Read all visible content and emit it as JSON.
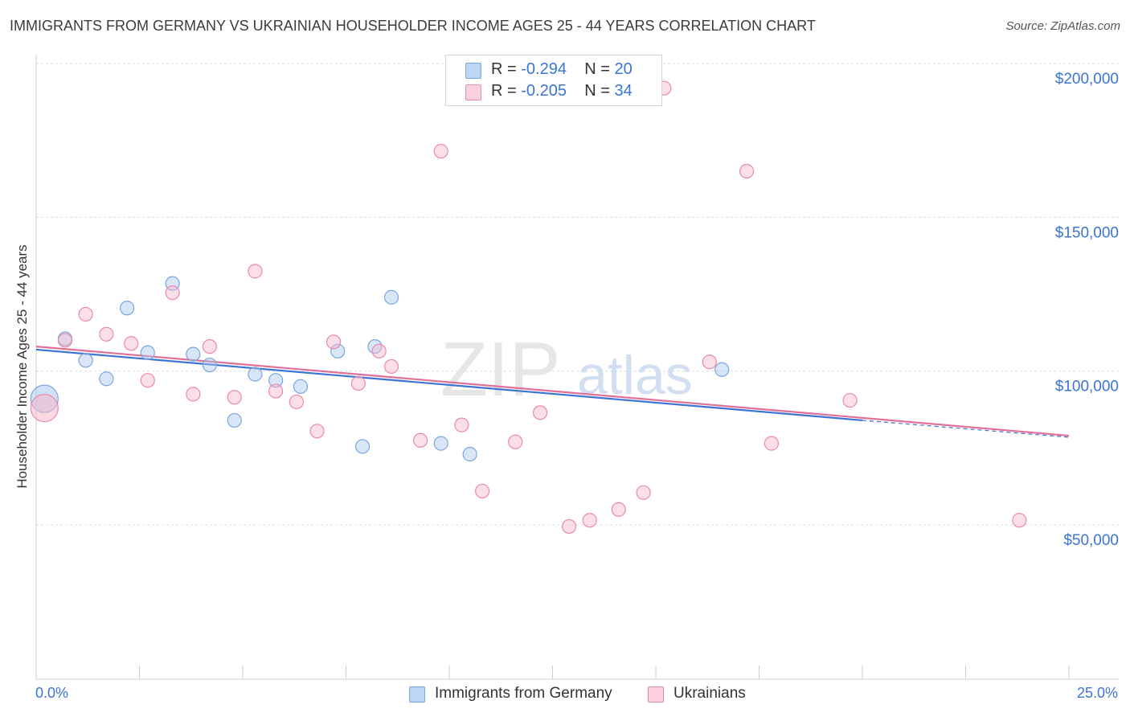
{
  "title": "IMMIGRANTS FROM GERMANY VS UKRAINIAN HOUSEHOLDER INCOME AGES 25 - 44 YEARS CORRELATION CHART",
  "source": "Source: ZipAtlas.com",
  "watermark": {
    "zip": "ZIP",
    "atlas": "atlas"
  },
  "stats": [
    {
      "r_label": "R = ",
      "r_value": "-0.294",
      "n_label": "N = ",
      "n_value": "20",
      "color": "#a9c8f0"
    },
    {
      "r_label": "R = ",
      "r_value": "-0.205",
      "n_label": "N = ",
      "n_value": "34",
      "color": "#f6b8cb"
    }
  ],
  "chart_data": {
    "type": "scatter",
    "title": "IMMIGRANTS FROM GERMANY VS UKRAINIAN HOUSEHOLDER INCOME AGES 25 - 44 YEARS CORRELATION CHART",
    "xlabel": "",
    "ylabel": "Householder Income Ages 25 - 44 years",
    "xlim": [
      0,
      25
    ],
    "ylim": [
      0,
      205000
    ],
    "x_tick_labels": [
      "0.0%",
      "25.0%"
    ],
    "y_ticks": [
      {
        "value": 50000,
        "label": "$50,000"
      },
      {
        "value": 100000,
        "label": "$100,000"
      },
      {
        "value": 150000,
        "label": "$150,000"
      },
      {
        "value": 200000,
        "label": "$200,000"
      }
    ],
    "grid": true,
    "legend_position": "bottom",
    "series": [
      {
        "name": "Immigrants from Germany",
        "color": "#a9c8f0",
        "stroke": "#7aa6dd",
        "trend_color": "#3b74d4",
        "trend": {
          "x0": 0,
          "y0": 107000,
          "x1": 20,
          "y1": 84000,
          "dash_to_x": 25,
          "dash_to_y": 78500
        },
        "points": [
          {
            "x": 0.2,
            "y": 91000,
            "big": true
          },
          {
            "x": 0.7,
            "y": 110500
          },
          {
            "x": 1.2,
            "y": 103500
          },
          {
            "x": 1.7,
            "y": 97500
          },
          {
            "x": 2.2,
            "y": 120500
          },
          {
            "x": 2.7,
            "y": 106000
          },
          {
            "x": 3.3,
            "y": 128500
          },
          {
            "x": 3.8,
            "y": 105500
          },
          {
            "x": 4.2,
            "y": 102000
          },
          {
            "x": 4.8,
            "y": 84000
          },
          {
            "x": 5.3,
            "y": 99000
          },
          {
            "x": 5.8,
            "y": 97000
          },
          {
            "x": 6.4,
            "y": 95000
          },
          {
            "x": 7.3,
            "y": 106500
          },
          {
            "x": 7.9,
            "y": 75500
          },
          {
            "x": 8.2,
            "y": 108000
          },
          {
            "x": 8.6,
            "y": 124000
          },
          {
            "x": 9.8,
            "y": 76500
          },
          {
            "x": 10.5,
            "y": 73000
          },
          {
            "x": 16.6,
            "y": 100500
          }
        ]
      },
      {
        "name": "Ukrainians",
        "color": "#f6b8cb",
        "stroke": "#e98aa8",
        "trend_color": "#e0709a",
        "trend": {
          "x0": 0,
          "y0": 108000,
          "x1": 25,
          "y1": 79000
        },
        "points": [
          {
            "x": 0.2,
            "y": 88000,
            "big": true
          },
          {
            "x": 0.7,
            "y": 110000
          },
          {
            "x": 1.2,
            "y": 118500
          },
          {
            "x": 1.7,
            "y": 112000
          },
          {
            "x": 2.3,
            "y": 109000
          },
          {
            "x": 2.7,
            "y": 97000
          },
          {
            "x": 3.3,
            "y": 125500
          },
          {
            "x": 3.8,
            "y": 92500
          },
          {
            "x": 4.2,
            "y": 108000
          },
          {
            "x": 4.8,
            "y": 91500
          },
          {
            "x": 5.3,
            "y": 132500
          },
          {
            "x": 5.8,
            "y": 93500
          },
          {
            "x": 6.3,
            "y": 90000
          },
          {
            "x": 6.8,
            "y": 80500
          },
          {
            "x": 7.2,
            "y": 109500
          },
          {
            "x": 7.8,
            "y": 96000
          },
          {
            "x": 8.3,
            "y": 106500
          },
          {
            "x": 8.6,
            "y": 101500
          },
          {
            "x": 9.3,
            "y": 77500
          },
          {
            "x": 9.8,
            "y": 171500
          },
          {
            "x": 10.3,
            "y": 82500
          },
          {
            "x": 10.8,
            "y": 61000
          },
          {
            "x": 11.6,
            "y": 77000
          },
          {
            "x": 12.2,
            "y": 86500
          },
          {
            "x": 12.9,
            "y": 49500
          },
          {
            "x": 13.4,
            "y": 51500
          },
          {
            "x": 14.1,
            "y": 55000
          },
          {
            "x": 14.7,
            "y": 60500
          },
          {
            "x": 15.2,
            "y": 192000
          },
          {
            "x": 16.3,
            "y": 103000
          },
          {
            "x": 17.2,
            "y": 165000
          },
          {
            "x": 17.8,
            "y": 76500
          },
          {
            "x": 19.7,
            "y": 90500
          },
          {
            "x": 23.8,
            "y": 51500
          }
        ]
      }
    ]
  }
}
